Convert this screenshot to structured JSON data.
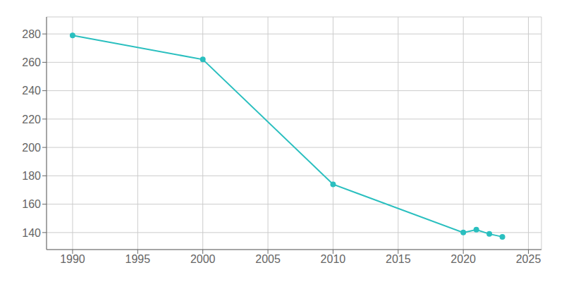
{
  "chart_data": {
    "type": "line",
    "x": [
      1990,
      2000,
      2010,
      2020,
      2021,
      2022,
      2023
    ],
    "values": [
      279,
      262,
      174,
      140,
      142,
      139,
      137
    ],
    "color": "#2ABFBF",
    "marker": "circle",
    "xlim": [
      1988,
      2026
    ],
    "ylim": [
      128,
      292
    ],
    "xticks": [
      1990,
      1995,
      2000,
      2005,
      2010,
      2015,
      2020,
      2025
    ],
    "yticks": [
      140,
      160,
      180,
      200,
      220,
      240,
      260,
      280
    ],
    "grid": true
  }
}
